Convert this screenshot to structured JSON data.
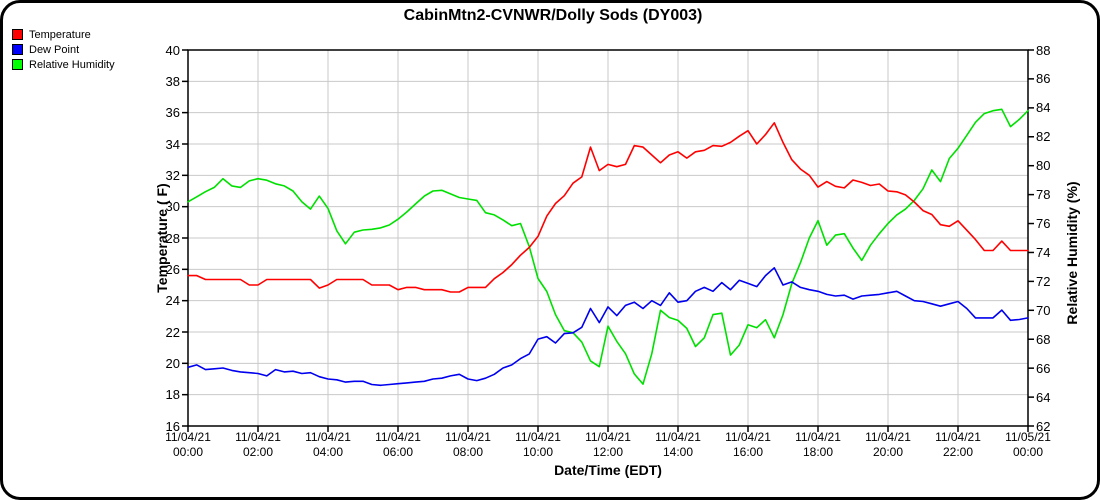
{
  "title": "CabinMtn2-CVNWR/Dolly Sods (DY003)",
  "legend": [
    {
      "label": "Temperature",
      "color": "#ff0000"
    },
    {
      "label": "Dew Point",
      "color": "#0000ff"
    },
    {
      "label": "Relative Humidity",
      "color": "#00ff00"
    }
  ],
  "colors": {
    "temperature_line": "#ff0000",
    "dew_point_line": "#0000ee",
    "humidity_line": "#00e000",
    "gridline": "#c9c9c9",
    "axis": "#000000"
  },
  "chart_data": {
    "type": "line",
    "title": "CabinMtn2-CVNWR/Dolly Sods (DY003)",
    "xlabel": "Date/Time (EDT)",
    "y_left": {
      "label": "Temperature ( F)",
      "min": 16,
      "max": 40,
      "tick_step": 2,
      "ticks": [
        40,
        38,
        36,
        34,
        32,
        30,
        28,
        26,
        24,
        22,
        20,
        18,
        16
      ]
    },
    "y_right": {
      "label": "Relative Humidity (%)",
      "min": 62,
      "max": 88,
      "tick_step": 2,
      "ticks": [
        88,
        86,
        84,
        82,
        80,
        78,
        76,
        74,
        72,
        70,
        68,
        66,
        64,
        62
      ]
    },
    "grid": "horizontal lines at left-axis ticks, vertical lines at 2-hour ticks",
    "legend_position": "top-left",
    "x_ticks": [
      {
        "date": "11/04/21",
        "time": "00:00",
        "hour": 0
      },
      {
        "date": "11/04/21",
        "time": "02:00",
        "hour": 2
      },
      {
        "date": "11/04/21",
        "time": "04:00",
        "hour": 4
      },
      {
        "date": "11/04/21",
        "time": "06:00",
        "hour": 6
      },
      {
        "date": "11/04/21",
        "time": "08:00",
        "hour": 8
      },
      {
        "date": "11/04/21",
        "time": "10:00",
        "hour": 10
      },
      {
        "date": "11/04/21",
        "time": "12:00",
        "hour": 12
      },
      {
        "date": "11/04/21",
        "time": "14:00",
        "hour": 14
      },
      {
        "date": "11/04/21",
        "time": "16:00",
        "hour": 16
      },
      {
        "date": "11/04/21",
        "time": "18:00",
        "hour": 18
      },
      {
        "date": "11/04/21",
        "time": "20:00",
        "hour": 20
      },
      {
        "date": "11/04/21",
        "time": "22:00",
        "hour": 22
      },
      {
        "date": "11/05/21",
        "time": "00:00",
        "hour": 24
      }
    ],
    "x_start_hours": 0,
    "x_step_hours": 0.25,
    "series": [
      {
        "name": "Temperature",
        "axis": "left",
        "color": "#ff0000",
        "values": [
          25.6,
          25.6,
          25.35,
          25.35,
          25.35,
          25.35,
          25.35,
          25.0,
          25.0,
          25.35,
          25.35,
          25.35,
          25.35,
          25.35,
          25.35,
          24.8,
          25.0,
          25.35,
          25.35,
          25.35,
          25.35,
          25.0,
          25.0,
          25.0,
          24.7,
          24.85,
          24.85,
          24.7,
          24.7,
          24.7,
          24.55,
          24.55,
          24.85,
          24.85,
          24.85,
          25.4,
          25.8,
          26.3,
          26.9,
          27.4,
          28.1,
          29.4,
          30.2,
          30.7,
          31.5,
          31.9,
          33.8,
          32.3,
          32.7,
          32.55,
          32.7,
          33.9,
          33.8,
          33.3,
          32.8,
          33.3,
          33.5,
          33.1,
          33.5,
          33.6,
          33.9,
          33.85,
          34.1,
          34.5,
          34.85,
          34.0,
          34.6,
          35.35,
          34.1,
          33.0,
          32.4,
          32.0,
          31.25,
          31.6,
          31.3,
          31.2,
          31.7,
          31.55,
          31.35,
          31.45,
          31.0,
          30.95,
          30.75,
          30.3,
          29.75,
          29.5,
          28.85,
          28.75,
          29.1,
          28.5,
          27.9,
          27.2,
          27.2,
          27.8,
          27.2,
          27.2,
          27.2
        ]
      },
      {
        "name": "Dew Point",
        "axis": "left",
        "color": "#0000ee",
        "values": [
          19.75,
          19.9,
          19.6,
          19.65,
          19.7,
          19.55,
          19.45,
          19.4,
          19.35,
          19.2,
          19.6,
          19.45,
          19.5,
          19.35,
          19.4,
          19.15,
          19.0,
          18.95,
          18.8,
          18.85,
          18.85,
          18.65,
          18.6,
          18.65,
          18.7,
          18.75,
          18.8,
          18.85,
          19.0,
          19.05,
          19.2,
          19.3,
          19.0,
          18.9,
          19.05,
          19.3,
          19.7,
          19.9,
          20.3,
          20.6,
          21.55,
          21.7,
          21.3,
          21.9,
          21.95,
          22.3,
          23.5,
          22.6,
          23.6,
          23.05,
          23.7,
          23.9,
          23.5,
          24.0,
          23.7,
          24.5,
          23.9,
          24.0,
          24.6,
          24.85,
          24.6,
          25.15,
          24.7,
          25.3,
          25.1,
          24.9,
          25.6,
          26.1,
          25.0,
          25.2,
          24.85,
          24.7,
          24.6,
          24.4,
          24.3,
          24.35,
          24.1,
          24.3,
          24.35,
          24.4,
          24.5,
          24.6,
          24.3,
          24.0,
          23.95,
          23.8,
          23.65,
          23.8,
          23.95,
          23.5,
          22.9,
          22.9,
          22.9,
          23.4,
          22.75,
          22.8,
          22.9
        ]
      },
      {
        "name": "Relative Humidity",
        "axis": "right",
        "color": "#00e000",
        "values": [
          77.5,
          77.85,
          78.2,
          78.5,
          79.1,
          78.6,
          78.5,
          78.95,
          79.1,
          79.0,
          78.75,
          78.6,
          78.25,
          77.5,
          77.0,
          77.9,
          77.05,
          75.5,
          74.6,
          75.4,
          75.55,
          75.6,
          75.7,
          75.9,
          76.3,
          76.8,
          77.35,
          77.9,
          78.25,
          78.3,
          78.05,
          77.8,
          77.7,
          77.6,
          76.75,
          76.6,
          76.25,
          75.85,
          76.0,
          74.4,
          72.2,
          71.3,
          69.7,
          68.6,
          68.45,
          67.8,
          66.5,
          66.1,
          68.9,
          67.85,
          67.0,
          65.6,
          64.9,
          67.0,
          70.0,
          69.5,
          69.3,
          68.75,
          67.5,
          68.1,
          69.7,
          69.8,
          66.9,
          67.6,
          69.0,
          68.8,
          69.35,
          68.1,
          69.7,
          71.85,
          73.3,
          75.0,
          76.2,
          74.5,
          75.2,
          75.3,
          74.3,
          73.45,
          74.5,
          75.3,
          76.0,
          76.6,
          77.0,
          77.6,
          78.4,
          79.7,
          78.9,
          80.5,
          81.2,
          82.1,
          83.0,
          83.6,
          83.8,
          83.9,
          82.7,
          83.2,
          83.8
        ]
      }
    ]
  }
}
